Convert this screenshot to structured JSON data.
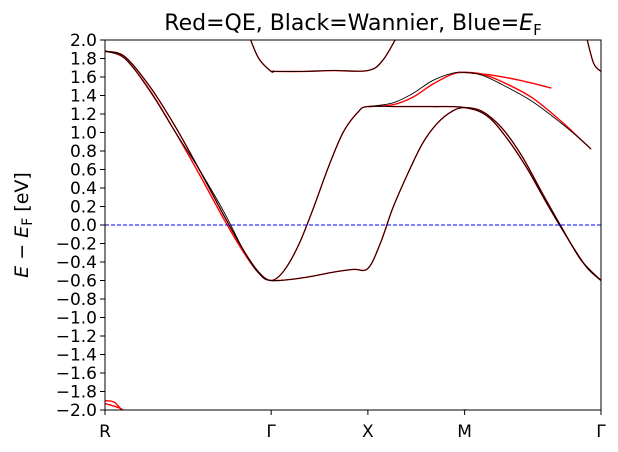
{
  "chart_data": {
    "type": "line",
    "title": {
      "prefix": "Red=QE, Black=Wannier, Blue=",
      "var": "E",
      "sub": "F"
    },
    "ylabel": {
      "E": "E",
      "minus": " − ",
      "E2": "E",
      "sub": "F",
      "unit": " [eV]"
    },
    "ylim": [
      -2.0,
      2.0
    ],
    "yticks": [
      "2.0",
      "1.8",
      "1.6",
      "1.4",
      "1.2",
      "1.0",
      "0.8",
      "0.6",
      "0.4",
      "0.2",
      "0.0",
      "−0.2",
      "−0.4",
      "−0.6",
      "−0.8",
      "−1.0",
      "−1.2",
      "−1.4",
      "−1.6",
      "−1.8",
      "−2.0"
    ],
    "xlim": [
      0,
      1
    ],
    "xticks": [
      {
        "label": "R",
        "x": 0.0
      },
      {
        "label": "Γ",
        "x": 0.335
      },
      {
        "label": "X",
        "x": 0.53
      },
      {
        "label": "M",
        "x": 0.725
      },
      {
        "label": "Γ",
        "x": 1.0
      }
    ],
    "fermi_level": 0.0,
    "colors": {
      "qe": "#ff0000",
      "wannier": "#000000",
      "fermi": "#0000ff"
    },
    "series": [
      {
        "name": "QE",
        "color": "#ff0000",
        "bands": [
          [
            [
              0,
              1.88
            ],
            [
              0.04,
              1.8
            ],
            [
              0.09,
              1.46
            ],
            [
              0.14,
              1.02
            ],
            [
              0.19,
              0.55
            ],
            [
              0.24,
              0.06
            ],
            [
              0.28,
              -0.3
            ],
            [
              0.31,
              -0.52
            ],
            [
              0.335,
              -0.6
            ],
            [
              0.4,
              -0.57
            ],
            [
              0.46,
              -0.51
            ],
            [
              0.5,
              -0.48
            ],
            [
              0.53,
              -0.47
            ],
            [
              0.555,
              -0.2
            ],
            [
              0.58,
              0.18
            ],
            [
              0.61,
              0.55
            ],
            [
              0.64,
              0.88
            ],
            [
              0.67,
              1.1
            ],
            [
              0.7,
              1.23
            ],
            [
              0.725,
              1.27
            ],
            [
              0.76,
              1.23
            ],
            [
              0.8,
              1.05
            ],
            [
              0.84,
              0.75
            ],
            [
              0.88,
              0.36
            ],
            [
              0.92,
              -0.02
            ],
            [
              0.96,
              -0.38
            ],
            [
              1.0,
              -0.6
            ]
          ],
          [
            [
              0,
              1.88
            ],
            [
              0.04,
              1.82
            ],
            [
              0.09,
              1.5
            ],
            [
              0.14,
              1.08
            ],
            [
              0.19,
              0.6
            ],
            [
              0.24,
              0.1
            ],
            [
              0.28,
              -0.28
            ],
            [
              0.31,
              -0.51
            ],
            [
              0.335,
              -0.6
            ],
            [
              0.36,
              -0.5
            ],
            [
              0.39,
              -0.22
            ],
            [
              0.42,
              0.18
            ],
            [
              0.45,
              0.62
            ],
            [
              0.48,
              1.0
            ],
            [
              0.51,
              1.22
            ],
            [
              0.53,
              1.28
            ],
            [
              0.6,
              1.28
            ],
            [
              0.66,
              1.28
            ],
            [
              0.725,
              1.27
            ],
            [
              0.77,
              1.18
            ],
            [
              0.81,
              0.94
            ],
            [
              0.85,
              0.62
            ],
            [
              0.89,
              0.24
            ],
            [
              0.93,
              -0.12
            ],
            [
              0.97,
              -0.45
            ],
            [
              1.0,
              -0.6
            ]
          ],
          [
            [
              0.335,
              1.66
            ],
            [
              0.4,
              1.66
            ],
            [
              0.46,
              1.67
            ],
            [
              0.53,
              1.67
            ],
            [
              0.56,
              1.78
            ],
            [
              0.59,
              2.05
            ]
          ],
          [
            [
              0.29,
              2.05
            ],
            [
              0.31,
              1.8
            ],
            [
              0.335,
              1.66
            ],
            [
              0.34,
              1.67
            ]
          ],
          [
            [
              0.53,
              1.28
            ],
            [
              0.58,
              1.3
            ],
            [
              0.62,
              1.38
            ],
            [
              0.66,
              1.52
            ],
            [
              0.7,
              1.63
            ],
            [
              0.725,
              1.65
            ],
            [
              0.76,
              1.63
            ],
            [
              0.8,
              1.55
            ],
            [
              0.86,
              1.38
            ],
            [
              0.92,
              1.12
            ],
            [
              0.96,
              0.92
            ],
            [
              0.98,
              0.82
            ]
          ],
          [
            [
              0.725,
              1.65
            ],
            [
              0.78,
              1.62
            ],
            [
              0.84,
              1.56
            ],
            [
              0.9,
              1.48
            ]
          ],
          [
            [
              0.97,
              2.05
            ],
            [
              0.985,
              1.75
            ],
            [
              1.0,
              1.66
            ]
          ],
          [
            [
              0,
              -1.9
            ],
            [
              0.02,
              -1.92
            ],
            [
              0.04,
              -2.05
            ]
          ],
          [
            [
              0,
              -1.93
            ],
            [
              0.03,
              -1.98
            ],
            [
              0.05,
              -2.05
            ]
          ],
          [
            [
              0.7,
              -2.05
            ],
            [
              0.725,
              -2.0
            ],
            [
              0.75,
              -2.05
            ]
          ]
        ]
      },
      {
        "name": "Wannier",
        "color": "#000000",
        "bands": [
          [
            [
              0,
              1.88
            ],
            [
              0.04,
              1.8
            ],
            [
              0.09,
              1.45
            ],
            [
              0.14,
              1.02
            ],
            [
              0.19,
              0.6
            ],
            [
              0.24,
              0.14
            ],
            [
              0.28,
              -0.28
            ],
            [
              0.31,
              -0.52
            ],
            [
              0.335,
              -0.6
            ],
            [
              0.4,
              -0.57
            ],
            [
              0.46,
              -0.51
            ],
            [
              0.5,
              -0.48
            ],
            [
              0.53,
              -0.47
            ],
            [
              0.555,
              -0.2
            ],
            [
              0.58,
              0.18
            ],
            [
              0.61,
              0.55
            ],
            [
              0.64,
              0.88
            ],
            [
              0.67,
              1.1
            ],
            [
              0.7,
              1.23
            ],
            [
              0.725,
              1.27
            ],
            [
              0.76,
              1.23
            ],
            [
              0.8,
              1.05
            ],
            [
              0.84,
              0.75
            ],
            [
              0.88,
              0.36
            ],
            [
              0.92,
              -0.02
            ],
            [
              0.96,
              -0.38
            ],
            [
              1.0,
              -0.6
            ]
          ],
          [
            [
              0,
              1.88
            ],
            [
              0.04,
              1.82
            ],
            [
              0.09,
              1.5
            ],
            [
              0.14,
              1.08
            ],
            [
              0.19,
              0.6
            ],
            [
              0.24,
              0.1
            ],
            [
              0.28,
              -0.28
            ],
            [
              0.31,
              -0.51
            ],
            [
              0.335,
              -0.6
            ],
            [
              0.36,
              -0.5
            ],
            [
              0.39,
              -0.22
            ],
            [
              0.42,
              0.18
            ],
            [
              0.45,
              0.62
            ],
            [
              0.48,
              1.0
            ],
            [
              0.51,
              1.22
            ],
            [
              0.53,
              1.28
            ],
            [
              0.6,
              1.28
            ],
            [
              0.66,
              1.28
            ],
            [
              0.725,
              1.27
            ],
            [
              0.77,
              1.18
            ],
            [
              0.81,
              0.94
            ],
            [
              0.85,
              0.62
            ],
            [
              0.89,
              0.24
            ],
            [
              0.93,
              -0.12
            ],
            [
              0.97,
              -0.45
            ],
            [
              1.0,
              -0.6
            ]
          ],
          [
            [
              0.335,
              1.66
            ],
            [
              0.4,
              1.66
            ],
            [
              0.46,
              1.67
            ],
            [
              0.53,
              1.67
            ],
            [
              0.56,
              1.78
            ],
            [
              0.59,
              2.05
            ]
          ],
          [
            [
              0.29,
              2.05
            ],
            [
              0.31,
              1.8
            ],
            [
              0.335,
              1.66
            ],
            [
              0.34,
              1.67
            ]
          ],
          [
            [
              0.53,
              1.28
            ],
            [
              0.58,
              1.32
            ],
            [
              0.62,
              1.42
            ],
            [
              0.66,
              1.56
            ],
            [
              0.7,
              1.64
            ],
            [
              0.725,
              1.65
            ],
            [
              0.76,
              1.62
            ],
            [
              0.8,
              1.52
            ],
            [
              0.86,
              1.34
            ],
            [
              0.92,
              1.1
            ],
            [
              0.96,
              0.92
            ],
            [
              0.98,
              0.82
            ]
          ],
          [
            [
              0.97,
              2.05
            ],
            [
              0.985,
              1.75
            ],
            [
              1.0,
              1.66
            ]
          ]
        ]
      }
    ],
    "grid": false,
    "legend": "none"
  }
}
